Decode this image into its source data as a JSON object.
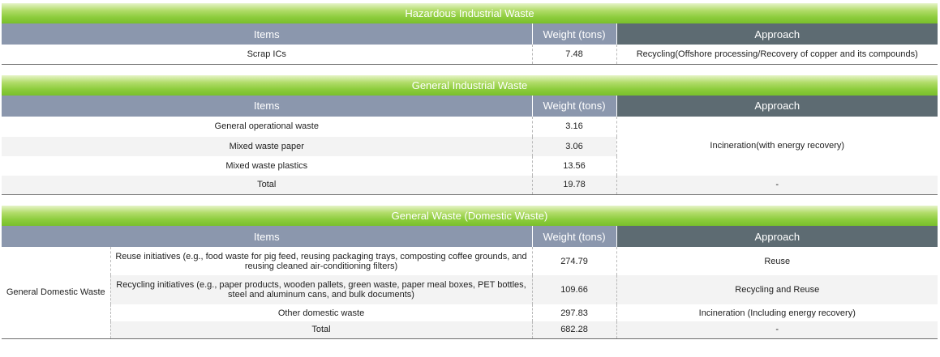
{
  "headers": {
    "items": "Items",
    "weight": "Weight (tons)",
    "approach": "Approach"
  },
  "hazardous": {
    "title": "Hazardous Industrial Waste",
    "rows": [
      {
        "item": "Scrap ICs",
        "weight": "7.48",
        "approach": "Recycling(Offshore processing/Recovery of copper and its compounds)"
      }
    ]
  },
  "general_industrial": {
    "title": "General Industrial Waste",
    "rows": [
      {
        "item": "General operational waste",
        "weight": "3.16"
      },
      {
        "item": "Mixed waste paper",
        "weight": "3.06"
      },
      {
        "item": "Mixed waste plastics",
        "weight": "13.56"
      }
    ],
    "merged_approach": "Incineration(with energy recovery)",
    "total": {
      "item": "Total",
      "weight": "19.78",
      "approach": "-"
    }
  },
  "general_waste": {
    "title": "General Waste (Domestic Waste)",
    "category": "General Domestic Waste",
    "rows": [
      {
        "item": "Reuse initiatives (e.g., food waste for pig feed, reusing packaging trays, composting coffee grounds, and reusing cleaned air-conditioning filters)",
        "weight": "274.79",
        "approach": "Reuse"
      },
      {
        "item": "Recycling initiatives (e.g., paper products, wooden pallets, green waste, paper meal boxes, PET bottles, steel and aluminum cans, and bulk documents)",
        "weight": "109.66",
        "approach": "Recycling and Reuse"
      },
      {
        "item": "Other domestic waste",
        "weight": "297.83",
        "approach": "Incineration (Including energy recovery)"
      }
    ],
    "total": {
      "item": "Total",
      "weight": "682.28",
      "approach": "-"
    }
  }
}
